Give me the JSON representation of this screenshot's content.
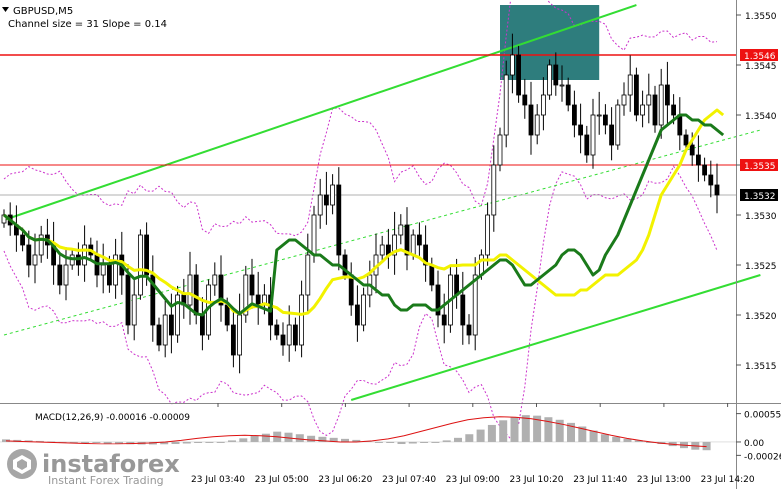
{
  "header": {
    "symbol": "GBPUSD,M5",
    "channel_info": "Channel size = 31 Slope = 0.14"
  },
  "macd": {
    "label": "MACD(12,26,9) -0.00016 -0.00009"
  },
  "watermark": {
    "brand": "instaforex",
    "tagline": "Instant Forex Trading"
  },
  "colors": {
    "background": "#ffffff",
    "bull_candle": "#000000",
    "bear_candle": "#000000",
    "ma_fast": "#1a7a1a",
    "ma_slow": "#f2f200",
    "channel": "#33dd33",
    "level_line": "#ee1111",
    "bollinger": "#cc33cc",
    "box": "#2e7d7d",
    "macd_hist": "#b0b0b0",
    "macd_signal": "#dd1111"
  },
  "chart_data": {
    "type": "candlestick",
    "title": "GBPUSD,M5",
    "y_ticks": [
      "1.3550",
      "1.3545",
      "1.3540",
      "1.3535",
      "1.3530",
      "1.3525",
      "1.3520",
      "1.3515"
    ],
    "ylim": [
      1.35115,
      1.3551
    ],
    "x_ticks": [
      "23 Jul 03:40",
      "23 Jul 05:00",
      "23 Jul 06:20",
      "23 Jul 07:40",
      "23 Jul 09:00",
      "23 Jul 10:20",
      "23 Jul 11:40",
      "23 Jul 13:00",
      "23 Jul 14:20"
    ],
    "price_labels": [
      {
        "text": "1.3546",
        "value": 1.3546,
        "color": "#ee1111"
      },
      {
        "text": "1.3535",
        "value": 1.3535,
        "color": "#ee1111"
      },
      {
        "text": "1.3532",
        "value": 1.3532,
        "color": "#000000"
      }
    ],
    "horizontal_levels": [
      1.3546,
      1.3535
    ],
    "channel_upper": [
      [
        0,
        1.35295
      ],
      [
        102,
        1.3551
      ]
    ],
    "channel_lower": [
      [
        56,
        1.35115
      ],
      [
        122,
        1.3524
      ]
    ],
    "channel_mid": [
      [
        0,
        1.3518
      ],
      [
        122,
        1.35385
      ]
    ],
    "highlight_box": {
      "from_index": 80,
      "to_index": 96,
      "low": 1.35435,
      "high": 1.3551
    },
    "closes": [
      1.353,
      1.3529,
      1.3528,
      1.3527,
      1.3525,
      1.3526,
      1.3528,
      1.3527,
      1.3525,
      1.3523,
      1.3525,
      1.3526,
      1.3525,
      1.3527,
      1.3526,
      1.3524,
      1.3525,
      1.3523,
      1.3526,
      1.3524,
      1.3519,
      1.3522,
      1.3528,
      1.3524,
      1.3519,
      1.3517,
      1.352,
      1.3518,
      1.3522,
      1.3521,
      1.3524,
      1.352,
      1.3518,
      1.3523,
      1.3524,
      1.3521,
      1.3519,
      1.3516,
      1.352,
      1.3524,
      1.3522,
      1.3521,
      1.3522,
      1.3519,
      1.3518,
      1.3517,
      1.3519,
      1.3517,
      1.3522,
      1.3526,
      1.353,
      1.3532,
      1.3531,
      1.3533,
      1.3526,
      1.3524,
      1.3521,
      1.3519,
      1.3522,
      1.3524,
      1.3526,
      1.3527,
      1.3526,
      1.3528,
      1.3529,
      1.3526,
      1.3528,
      1.3527,
      1.3525,
      1.3523,
      1.352,
      1.3519,
      1.3524,
      1.3522,
      1.3519,
      1.3518,
      1.3524,
      1.3526,
      1.353,
      1.3535,
      1.3538,
      1.3544,
      1.3546,
      1.3542,
      1.3541,
      1.3538,
      1.354,
      1.3542,
      1.3545,
      1.3543,
      1.3543,
      1.3541,
      1.3539,
      1.3538,
      1.3536,
      1.354,
      1.354,
      1.3539,
      1.3537,
      1.3541,
      1.3542,
      1.3544,
      1.354,
      1.3541,
      1.3542,
      1.3539,
      1.3543,
      1.3541,
      1.354,
      1.3538,
      1.3537,
      1.3536,
      1.3535,
      1.3534,
      1.3533,
      1.3532
    ],
    "ma_fast": [
      1.35265,
      1.3527,
      1.35275,
      1.35275,
      1.3527,
      1.35265,
      1.3526,
      1.3526,
      1.35255,
      1.3525,
      1.3525,
      1.35245,
      1.3524,
      1.35235,
      1.3523,
      1.3523,
      1.35225,
      1.3522,
      1.3522,
      1.3521,
      1.35205,
      1.35205,
      1.3521,
      1.3521,
      1.3521,
      1.35205,
      1.35205,
      1.3521,
      1.35215,
      1.3522,
      1.35225,
      1.3523,
      1.35235,
      1.3524,
      1.35245,
      1.3525,
      1.35255,
      1.35255,
      1.3525,
      1.3524,
      1.3523,
      1.3523,
      1.35235,
      1.3524,
      1.35245,
      1.3525,
      1.3526,
      1.35265,
      1.35265,
      1.3526,
      1.3525,
      1.3524,
      1.35245,
      1.3526,
      1.3527,
      1.3528,
      1.35295,
      1.3531,
      1.35325,
      1.3534,
      1.35355,
      1.3537,
      1.35385,
      1.3539,
      1.35395,
      1.354,
      1.354,
      1.35395,
      1.35395,
      1.3539,
      1.3539,
      1.35385,
      1.3538
    ],
    "ma_fast_from_index": 44,
    "ma_slow": [
      1.3525,
      1.3525,
      1.3525,
      1.35255,
      1.35255,
      1.35255,
      1.3526,
      1.3526,
      1.35255,
      1.3525,
      1.35245,
      1.3524,
      1.35235,
      1.3523,
      1.35225,
      1.3522,
      1.3522,
      1.3522,
      1.3522,
      1.35225,
      1.35225,
      1.3523,
      1.35235,
      1.3524,
      1.3524,
      1.3524,
      1.35245,
      1.3525,
      1.35255,
      1.35265,
      1.3528,
      1.353,
      1.3532,
      1.3533,
      1.3534,
      1.3535,
      1.35365,
      1.35375,
      1.35385,
      1.35395,
      1.354,
      1.35405,
      1.354
    ],
    "ma_slow_from_index": 74,
    "macd_ylim": [
      -0.00035,
      0.00062
    ],
    "macd_y_ticks": [
      "0.00055",
      "0.00",
      "-0.00026"
    ],
    "macd_hist": [
      5e-05,
      4e-05,
      3e-05,
      2e-05,
      1e-05,
      0.0,
      -1e-05,
      -2e-05,
      -2e-05,
      -3e-05,
      -4e-05,
      -5e-05,
      -6e-05,
      -6e-05,
      -5e-05,
      -4e-05,
      -3e-05,
      -2e-05,
      -1e-05,
      0.0,
      3e-05,
      7e-05,
      0.00012,
      0.00016,
      0.0002,
      0.00018,
      0.00015,
      0.00012,
      0.0001,
      8e-05,
      6e-05,
      4e-05,
      2e-05,
      0.0,
      -2e-05,
      -4e-05,
      -3e-05,
      -2e-05,
      0.0,
      3e-05,
      8e-05,
      0.00015,
      0.00024,
      0.00033,
      0.00042,
      0.00048,
      0.00052,
      0.00051,
      0.00048,
      0.00043,
      0.00037,
      0.0003,
      0.00022,
      0.00015,
      0.0001,
      6e-05,
      3e-05,
      0.0,
      -4e-05,
      -8e-05,
      -0.00012,
      -0.00015,
      -0.00016
    ],
    "macd_signal": [
      2e-05,
      1e-05,
      0.0,
      -1e-05,
      -2e-05,
      -3e-05,
      -4e-05,
      -4e-05,
      -3e-05,
      -2e-05,
      0.0,
      3e-05,
      7e-05,
      0.0001,
      0.00012,
      0.00013,
      0.00012,
      0.0001,
      7e-05,
      4e-05,
      2e-05,
      0.0,
      0.0,
      2e-05,
      6e-05,
      0.00012,
      0.0002,
      0.00028,
      0.00036,
      0.00043,
      0.00047,
      0.00049,
      0.00048,
      0.00045,
      0.0004,
      0.00034,
      0.00027,
      0.0002,
      0.00013,
      7e-05,
      2e-05,
      -2e-05,
      -5e-05,
      -7e-05,
      -9e-05
    ]
  }
}
